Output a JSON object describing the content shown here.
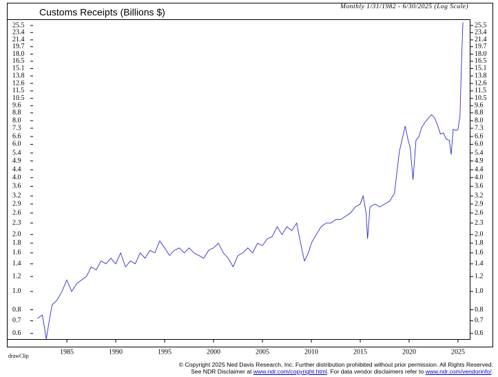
{
  "chart_data": {
    "type": "line",
    "title": "Customs Receipts (Billions $)",
    "subtitle": "Monthly 1/31/1982 - 6/30/2025 (Log Scale)",
    "annotation": "drawClip",
    "footer": [
      "© Copyright 2025 Ned Davis Research, Inc.  Further distribution prohibited without prior permission.  All Rights Reserved.",
      "See NDR Disclaimer at ",
      "www.ndr.com/copyright.html",
      ". For data vendor disclaimers refer to ",
      "www.ndr.com/vendorinfo/",
      "."
    ],
    "log_scale": true,
    "color": "#2b2bd0",
    "xlim": [
      1978.87,
      2026.27
    ],
    "xticks": [
      1985,
      1990,
      1995,
      2000,
      2005,
      2010,
      2015,
      2020,
      2025
    ],
    "ylim": [
      0.56,
      27.5
    ],
    "yticks": [
      0.6,
      0.7,
      0.8,
      {
        "value": 1,
        "label": "1.0"
      },
      1.2,
      1.4,
      1.6,
      1.8,
      {
        "value": 2,
        "label": "2.0"
      },
      2.3,
      2.6,
      2.9,
      3.2,
      3.6,
      {
        "value": 4,
        "label": "4.0"
      },
      4.4,
      4.9,
      5.4,
      {
        "value": 6,
        "label": "6.0"
      },
      6.6,
      7.3,
      {
        "value": 8,
        "label": "8.0"
      },
      8.8,
      9.6,
      10.5,
      11.5,
      12.6,
      13.8,
      15.1,
      16.5,
      {
        "value": 18,
        "label": "18.0"
      },
      19.7,
      21.4,
      23.4,
      25.5
    ],
    "x": [
      1982.0,
      1982.5,
      1982.9,
      1983.2,
      1983.5,
      1984.0,
      1984.5,
      1985.0,
      1985.5,
      1986.0,
      1986.5,
      1987.0,
      1987.5,
      1988.0,
      1988.5,
      1989.0,
      1989.5,
      1990.0,
      1990.5,
      1991.0,
      1991.5,
      1992.0,
      1992.5,
      1993.0,
      1993.5,
      1994.0,
      1994.5,
      1995.0,
      1995.5,
      1996.0,
      1996.5,
      1997.0,
      1997.5,
      1998.0,
      1998.5,
      1999.0,
      1999.5,
      2000.0,
      2000.5,
      2001.0,
      2001.5,
      2002.0,
      2002.5,
      2003.0,
      2003.5,
      2004.0,
      2004.5,
      2005.0,
      2005.5,
      2006.0,
      2006.5,
      2007.0,
      2007.5,
      2008.0,
      2008.5,
      2009.0,
      2009.3,
      2009.7,
      2010.0,
      2010.5,
      2011.0,
      2011.5,
      2012.0,
      2012.5,
      2013.0,
      2013.5,
      2014.0,
      2014.5,
      2015.0,
      2015.3,
      2015.6,
      2015.75,
      2016.0,
      2016.5,
      2017.0,
      2017.5,
      2018.0,
      2018.5,
      2018.8,
      2019.0,
      2019.3,
      2019.6,
      2019.9,
      2020.1,
      2020.4,
      2020.7,
      2021.0,
      2021.3,
      2021.6,
      2022.0,
      2022.3,
      2022.6,
      2022.9,
      2023.2,
      2023.5,
      2023.8,
      2024.1,
      2024.3,
      2024.5,
      2024.8,
      2025.0,
      2025.2,
      2025.35,
      2025.5
    ],
    "values": [
      0.72,
      0.75,
      0.56,
      0.7,
      0.85,
      0.9,
      1.0,
      1.15,
      1.0,
      1.1,
      1.15,
      1.2,
      1.35,
      1.3,
      1.45,
      1.4,
      1.5,
      1.4,
      1.6,
      1.35,
      1.45,
      1.4,
      1.6,
      1.5,
      1.65,
      1.6,
      1.85,
      1.7,
      1.55,
      1.65,
      1.7,
      1.6,
      1.7,
      1.6,
      1.55,
      1.5,
      1.65,
      1.7,
      1.8,
      1.6,
      1.5,
      1.35,
      1.55,
      1.6,
      1.7,
      1.6,
      1.8,
      1.75,
      1.9,
      1.95,
      2.2,
      2.0,
      2.2,
      2.1,
      2.3,
      1.7,
      1.45,
      1.6,
      1.8,
      2.0,
      2.2,
      2.3,
      2.3,
      2.4,
      2.4,
      2.5,
      2.6,
      2.8,
      2.9,
      3.2,
      2.6,
      1.9,
      2.8,
      2.9,
      2.8,
      2.9,
      3.0,
      3.3,
      4.5,
      5.5,
      6.4,
      7.5,
      6.3,
      5.8,
      3.9,
      6.3,
      6.6,
      7.4,
      7.8,
      8.3,
      8.6,
      8.3,
      7.6,
      6.8,
      6.9,
      6.4,
      6.3,
      5.3,
      7.2,
      7.1,
      7.2,
      8.5,
      16,
      26.5
    ]
  }
}
